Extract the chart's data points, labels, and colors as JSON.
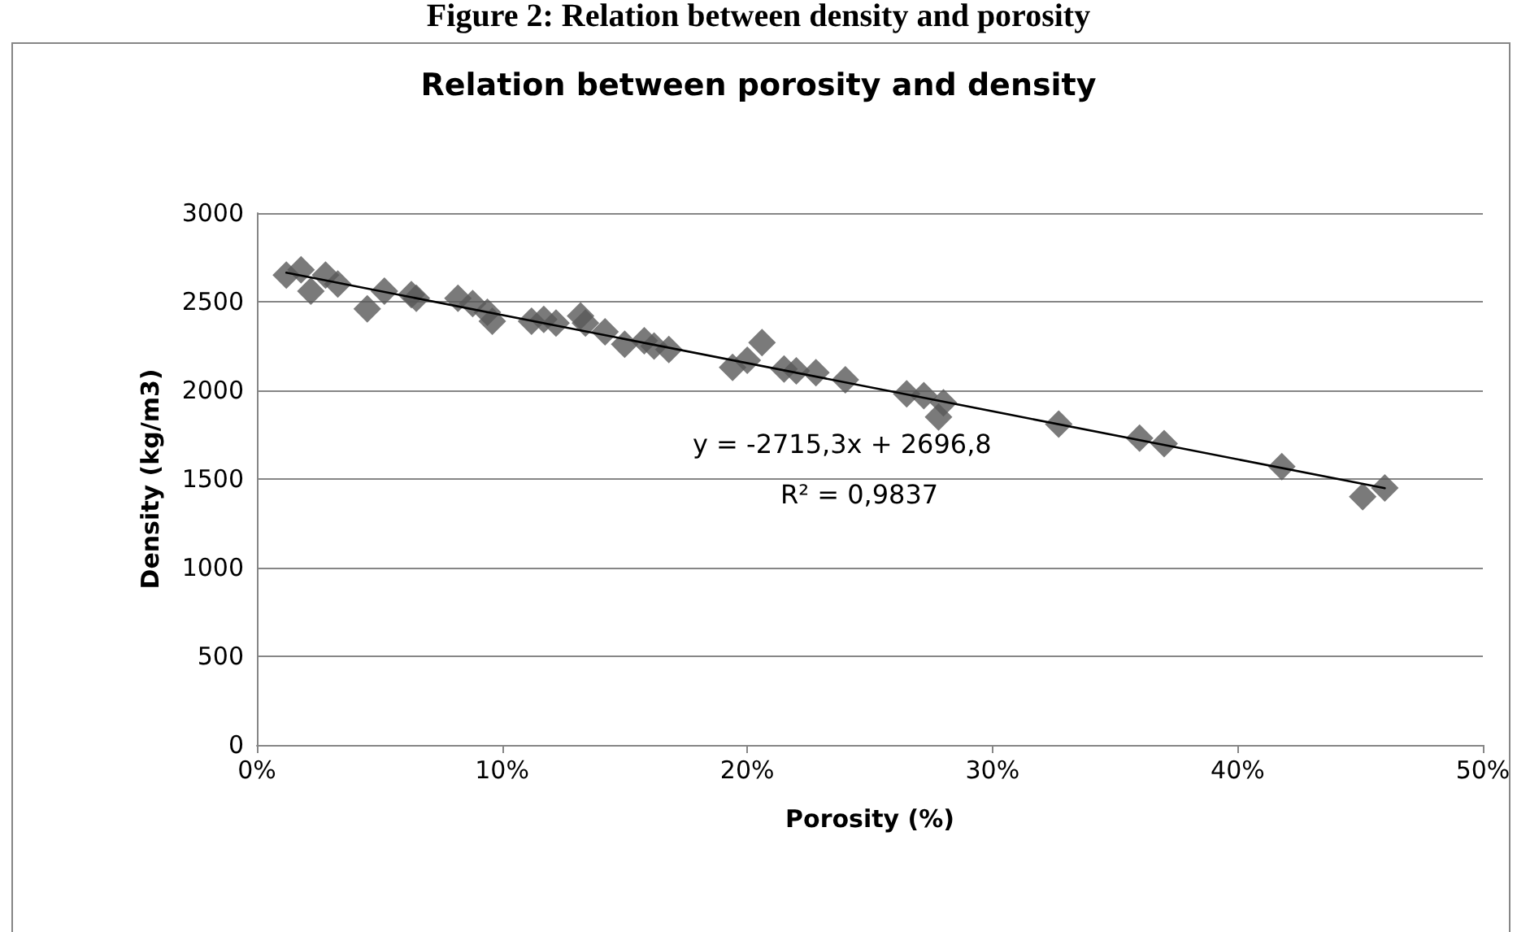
{
  "chart_data": {
    "type": "scatter",
    "title": "Relation between porosity and density",
    "xlabel": "Porosity (%)",
    "ylabel": "Density (kg/m3)",
    "annotations": [
      "Figure 2: Relation between density and porosity",
      "y = -2715,3x + 2696,8",
      "R² = 0,9837"
    ],
    "series": [
      {
        "color": "#595959",
        "marker": "diamond",
        "x": [
          0.012,
          0.018,
          0.022,
          0.028,
          0.033,
          0.045,
          0.052,
          0.063,
          0.065,
          0.082,
          0.088,
          0.094,
          0.096,
          0.112,
          0.117,
          0.122,
          0.132,
          0.134,
          0.142,
          0.15,
          0.158,
          0.162,
          0.168,
          0.194,
          0.2,
          0.206,
          0.215,
          0.22,
          0.228,
          0.24,
          0.265,
          0.272,
          0.278,
          0.28,
          0.327,
          0.36,
          0.37,
          0.418,
          0.451,
          0.46
        ],
        "values": [
          2650,
          2680,
          2560,
          2650,
          2600,
          2460,
          2560,
          2540,
          2520,
          2520,
          2490,
          2440,
          2390,
          2390,
          2400,
          2380,
          2420,
          2380,
          2330,
          2260,
          2280,
          2250,
          2230,
          2130,
          2170,
          2270,
          2120,
          2110,
          2100,
          2060,
          1980,
          1970,
          1850,
          1930,
          1810,
          1730,
          1700,
          1570,
          1400,
          1450
        ]
      },
      {
        "type": "line",
        "color": "#000000",
        "marker": "none",
        "line_style": "solid",
        "x": [
          0.012,
          0.46
        ],
        "values": [
          2664,
          1448
        ]
      }
    ],
    "xlim": [
      0,
      0.5
    ],
    "xticks": [
      {
        "value": 0,
        "label": "0%"
      },
      {
        "value": 0.1,
        "label": "10%"
      },
      {
        "value": 0.2,
        "label": "20%"
      },
      {
        "value": 0.3,
        "label": "30%"
      },
      {
        "value": 0.4,
        "label": "40%"
      },
      {
        "value": 0.5,
        "label": "50%"
      }
    ],
    "ylim": [
      0,
      3000
    ],
    "yticks": [
      0,
      500,
      1000,
      1500,
      2000,
      2500,
      3000
    ],
    "grid": "y"
  }
}
